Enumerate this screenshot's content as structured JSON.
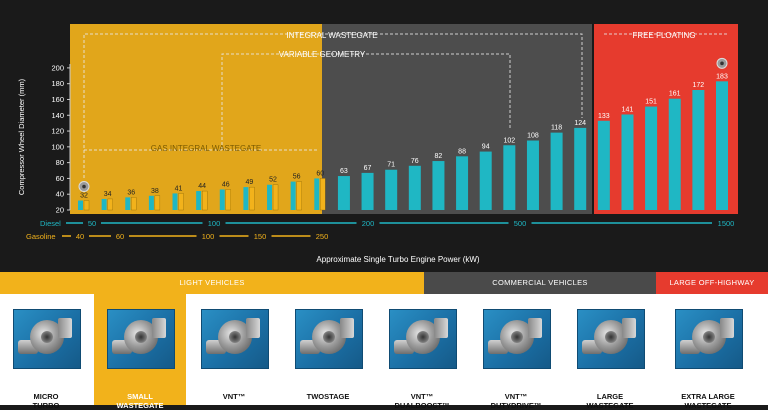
{
  "chart_data": {
    "type": "bar",
    "y_axis_label": "Compressor Wheel Diameter (mm)",
    "x_axis_label": "Approximate Single Turbo Engine Power (kW)",
    "y_ticks": [
      20,
      40,
      60,
      80,
      100,
      120,
      140,
      160,
      180,
      200
    ],
    "ylim": [
      20,
      210
    ],
    "grid": false,
    "values": [
      32,
      34,
      36,
      38,
      41,
      44,
      46,
      49,
      52,
      56,
      60,
      63,
      67,
      71,
      76,
      82,
      88,
      94,
      102,
      108,
      118,
      124,
      133,
      141,
      151,
      161,
      172,
      183
    ],
    "gas_bar_count": 11,
    "series_colors": {
      "diesel": "#1fb7c4",
      "gasoline": "#f2b21b"
    },
    "regions": [
      {
        "label": "INTEGRAL WASTEGATE",
        "color": "#f2b21b"
      },
      {
        "label": "FREE FLOATING",
        "color": "#e63b2e"
      }
    ],
    "inner_labels": [
      "VARIABLE GEOMETRY",
      "GAS INTEGRAL WASTEGATE"
    ],
    "diesel_row": {
      "name": "Diesel",
      "ticks": [
        "50",
        "100",
        "200",
        "500",
        "1500"
      ],
      "color": "#1fb7c4"
    },
    "gasoline_row": {
      "name": "Gasoline",
      "ticks": [
        "40",
        "60",
        "100",
        "150",
        "250"
      ],
      "color": "#f2b21b"
    }
  },
  "bottom": {
    "bands": [
      {
        "label": "LIGHT VEHICLES",
        "color": "#f2b21b"
      },
      {
        "label": "COMMERCIAL VEHICLES",
        "color": "#4a4a4a"
      },
      {
        "label": "LARGE OFF-HIGHWAY",
        "color": "#e63b2e"
      }
    ],
    "products": [
      {
        "line1": "MICRO",
        "line2": "TURBO",
        "icon": "micro-turbo-icon"
      },
      {
        "line1": "SMALL",
        "line2": "WASTEGATE",
        "icon": "small-wastegate-icon"
      },
      {
        "line1": "VNT™",
        "line2": "",
        "icon": "vnt-turbo-icon"
      },
      {
        "line1": "TWOSTAGE",
        "line2": "",
        "icon": "twostage-turbo-icon"
      },
      {
        "line1": "VNT™",
        "line2": "DUALBOOST™",
        "icon": "dualboost-turbo-icon"
      },
      {
        "line1": "VNT™",
        "line2": "DUTYDRIVE™",
        "icon": "dutydrive-turbo-icon"
      },
      {
        "line1": "LARGE",
        "line2": "WASTEGATE",
        "icon": "large-wastegate-icon"
      },
      {
        "line1": "EXTRA LARGE",
        "line2": "WASTEGATE",
        "icon": "extra-large-wastegate-icon"
      }
    ]
  }
}
